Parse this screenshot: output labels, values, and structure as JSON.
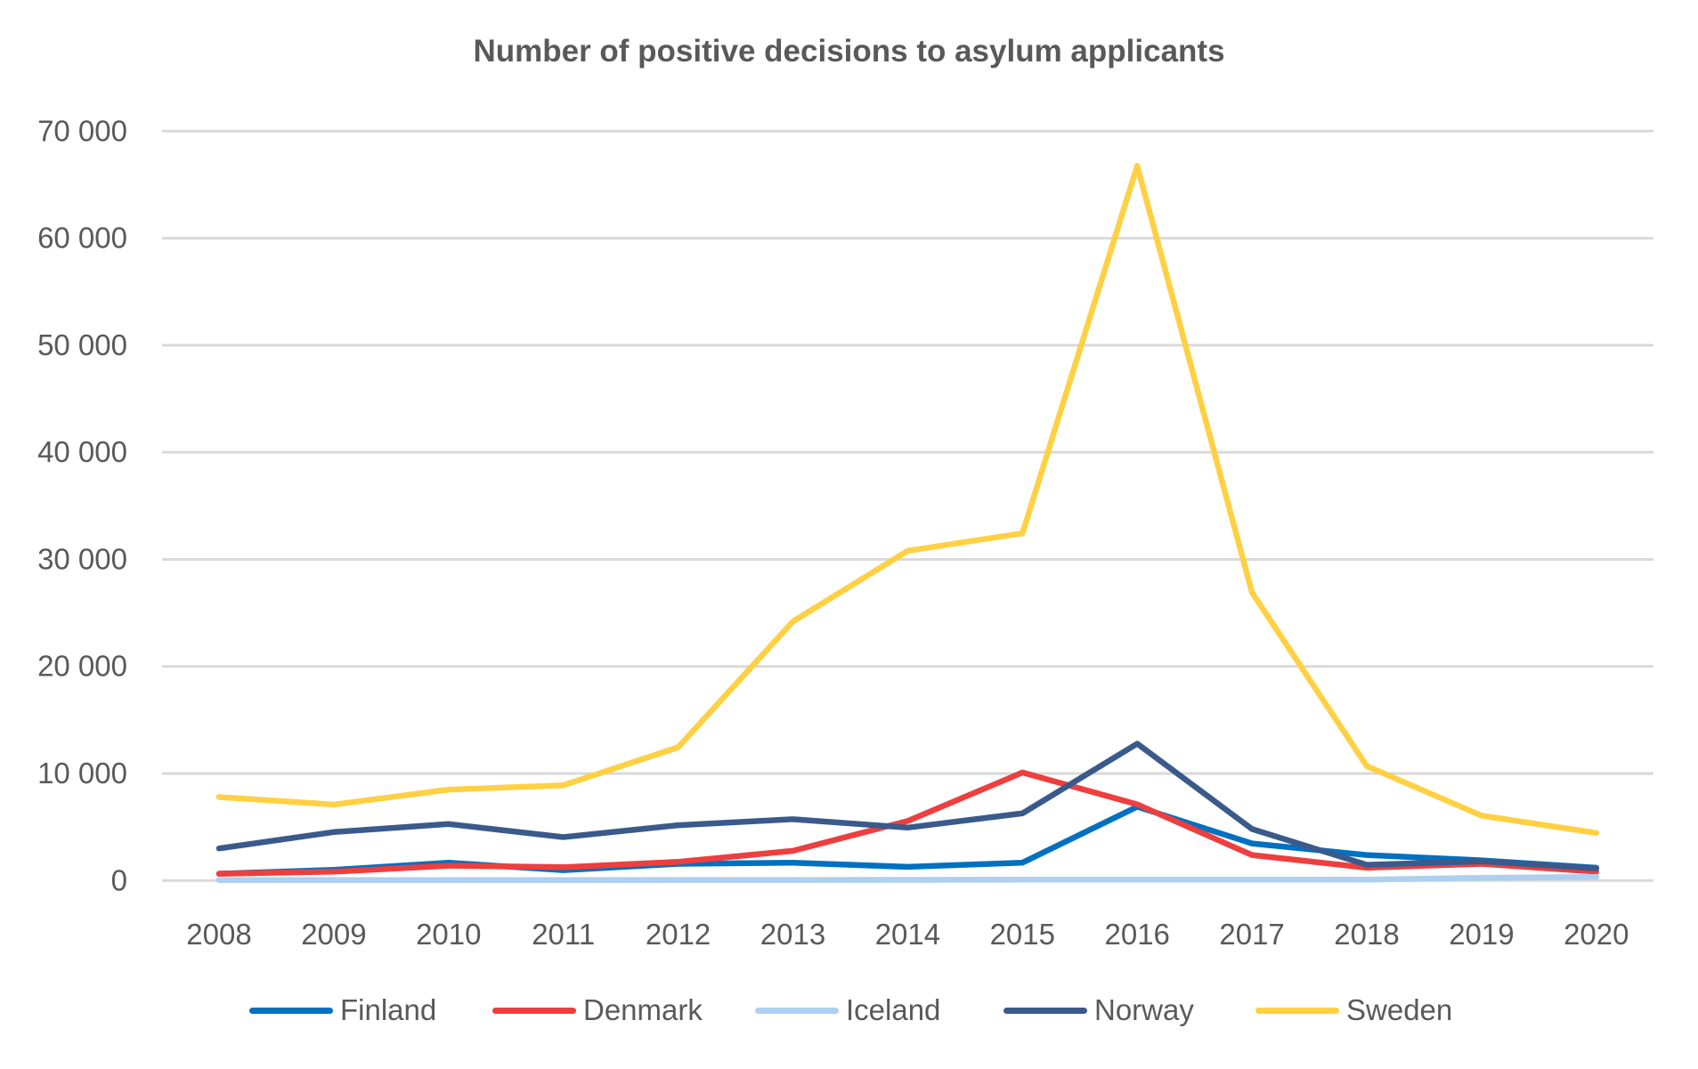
{
  "chart_data": {
    "type": "line",
    "title": "Number of positive decisions to asylum applicants",
    "xlabel": "",
    "ylabel": "",
    "x": [
      "2008",
      "2009",
      "2010",
      "2011",
      "2012",
      "2013",
      "2014",
      "2015",
      "2016",
      "2017",
      "2018",
      "2019",
      "2020"
    ],
    "ylim": [
      0,
      70000
    ],
    "yticks": [
      0,
      10000,
      20000,
      30000,
      40000,
      50000,
      60000,
      70000
    ],
    "ytick_labels": [
      "0",
      "10 000",
      "20 000",
      "30 000",
      "40 000",
      "50 000",
      "60 000",
      "70 000"
    ],
    "grid": true,
    "legend_position": "bottom",
    "series": [
      {
        "name": "Finland",
        "color": "#0070C0",
        "values": [
          640,
          1000,
          1670,
          970,
          1560,
          1670,
          1280,
          1670,
          6900,
          3470,
          2390,
          1890,
          1200
        ]
      },
      {
        "name": "Denmark",
        "color": "#EE3E3E",
        "values": [
          640,
          830,
          1390,
          1250,
          1750,
          2780,
          5560,
          10090,
          7120,
          2390,
          1200,
          1560,
          830
        ]
      },
      {
        "name": "Iceland",
        "color": "#ADCFF0",
        "values": [
          50,
          50,
          50,
          50,
          60,
          60,
          70,
          80,
          80,
          80,
          80,
          260,
          340
        ]
      },
      {
        "name": "Norway",
        "color": "#3A5A8C",
        "values": [
          3000,
          4530,
          5280,
          4060,
          5170,
          5730,
          4950,
          6280,
          12790,
          4810,
          1470,
          1800,
          1140
        ]
      },
      {
        "name": "Sweden",
        "color": "#FFD043",
        "values": [
          7800,
          7100,
          8500,
          8900,
          12450,
          24200,
          30800,
          32440,
          66750,
          26900,
          10700,
          6060,
          4450
        ]
      }
    ]
  }
}
